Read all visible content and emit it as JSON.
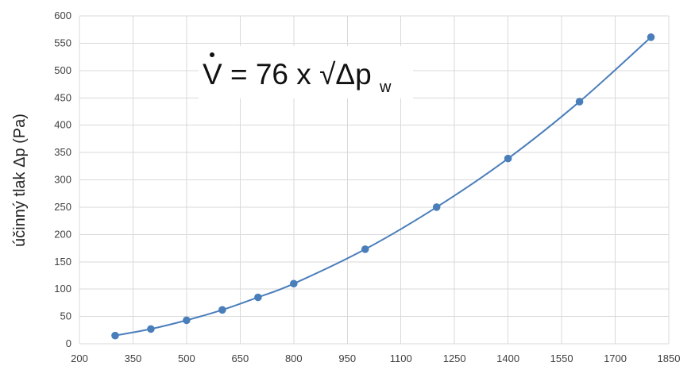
{
  "chart_data": {
    "type": "scatter",
    "ylabel": "účinný tlak  Δp (Pa)",
    "xlabel": "",
    "annotation": {
      "symbol": "V",
      "expression": " = 76 x √Δp",
      "subscript": "w"
    },
    "xlim": [
      200,
      1850
    ],
    "ylim": [
      0,
      600
    ],
    "x_ticks": [
      200,
      350,
      500,
      650,
      800,
      950,
      1100,
      1250,
      1400,
      1550,
      1700,
      1850
    ],
    "y_ticks": [
      0,
      50,
      100,
      150,
      200,
      250,
      300,
      350,
      400,
      450,
      500,
      550,
      600
    ],
    "grid": true,
    "series": [
      {
        "x": [
          300,
          400,
          500,
          600,
          700,
          800,
          1000,
          1200,
          1400,
          1600,
          1800
        ],
        "y": [
          15,
          27,
          43,
          62,
          85,
          110,
          173,
          250,
          339,
          443,
          561
        ]
      }
    ],
    "colors": {
      "series": "#4a7ebb",
      "marker": "#4a7ebb",
      "grid": "#d9d9d9"
    }
  }
}
